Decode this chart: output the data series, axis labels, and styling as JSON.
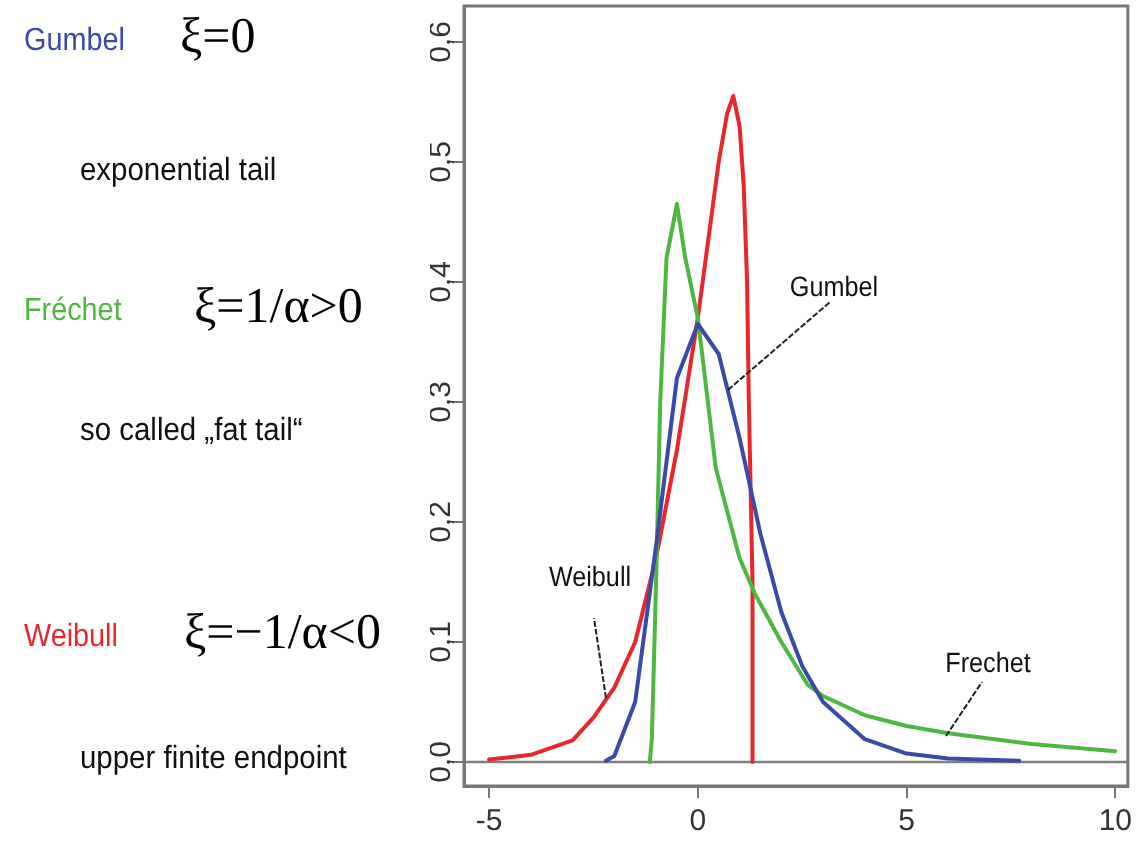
{
  "chart_data": {
    "type": "line",
    "series": [
      {
        "name": "Gumbel",
        "color": "#3a4aa8",
        "x": [
          -2.2,
          -2,
          -1.5,
          -1,
          -0.5,
          0,
          0.5,
          1,
          1.5,
          2,
          2.5,
          3,
          4,
          5,
          6,
          7.7
        ],
        "values": [
          0.001,
          0.005,
          0.05,
          0.18,
          0.32,
          0.365,
          0.34,
          0.27,
          0.19,
          0.125,
          0.08,
          0.05,
          0.019,
          0.007,
          0.003,
          0.001
        ]
      },
      {
        "name": "Fréchet",
        "color": "#4cb840",
        "x": [
          -1.15,
          -1.1,
          -1,
          -0.9,
          -0.75,
          -0.5,
          -0.3,
          0,
          0.43,
          1,
          1.37,
          2,
          2.64,
          3,
          4,
          5,
          6,
          8,
          10
        ],
        "values": [
          0,
          0.02,
          0.15,
          0.3,
          0.42,
          0.465,
          0.42,
          0.37,
          0.245,
          0.17,
          0.14,
          0.1,
          0.064,
          0.055,
          0.039,
          0.03,
          0.024,
          0.015,
          0.009
        ]
      },
      {
        "name": "Weibull",
        "color": "#e8262c",
        "x": [
          -5,
          -4,
          -3,
          -2.5,
          -2,
          -1.5,
          -1,
          -0.5,
          0,
          0.5,
          0.7,
          0.85,
          1,
          1.1,
          1.18,
          1.22,
          1.31,
          1.31
        ],
        "values": [
          0.002,
          0.006,
          0.018,
          0.037,
          0.062,
          0.1,
          0.17,
          0.26,
          0.37,
          0.5,
          0.54,
          0.555,
          0.53,
          0.48,
          0.4,
          0.305,
          0.15,
          0
        ]
      }
    ],
    "xlim": [
      -5.6,
      10.3
    ],
    "xticks": [
      -5,
      0,
      5,
      10
    ],
    "ylim": [
      -0.02,
      0.63
    ],
    "yticks": [
      {
        "value": 0,
        "label": "0,0"
      },
      {
        "value": 0.1,
        "label": "0,1"
      },
      {
        "value": 0.2,
        "label": "0,2"
      },
      {
        "value": 0.3,
        "label": "0,3"
      },
      {
        "value": 0.4,
        "label": "0,4"
      },
      {
        "value": 0.5,
        "label": "0,5"
      },
      {
        "value": 0.6,
        "label": "0,6"
      }
    ],
    "ref_lines": [
      {
        "axis": "y",
        "value": 0,
        "color": "#808080"
      }
    ],
    "marker": "none",
    "line_style": "solid",
    "grid": false,
    "legend": "left",
    "annotations": [
      "ξ=0",
      "exponential tail",
      "ξ=1/α>0",
      "so called „fat tail“",
      "ξ=−1/α<0",
      "upper finite endpoint",
      {
        "text": "Gumbel",
        "x": 0.74,
        "y": 0.31
      },
      {
        "text": "Weibull",
        "x": -2.18,
        "y": 0.053
      },
      {
        "text": "Frechet",
        "x": 5.96,
        "y": 0.022
      }
    ]
  }
}
